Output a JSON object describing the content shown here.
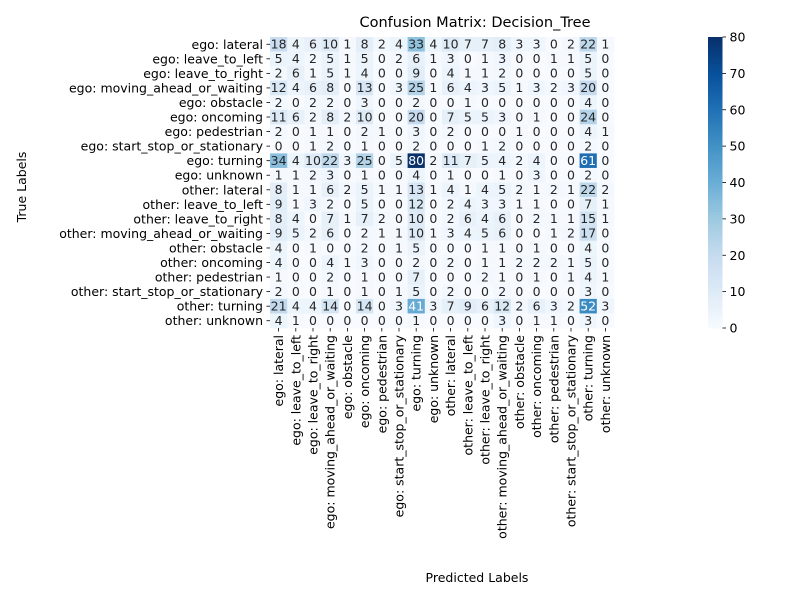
{
  "chart_data": {
    "type": "heatmap",
    "title": "Confusion Matrix: Decision_Tree",
    "xlabel": "Predicted Labels",
    "ylabel": "True Labels",
    "labels": [
      "ego: lateral",
      "ego: leave_to_left",
      "ego: leave_to_right",
      "ego: moving_ahead_or_waiting",
      "ego: obstacle",
      "ego: oncoming",
      "ego: pedestrian",
      "ego: start_stop_or_stationary",
      "ego: turning",
      "ego: unknown",
      "other: lateral",
      "other: leave_to_left",
      "other: leave_to_right",
      "other: moving_ahead_or_waiting",
      "other: obstacle",
      "other: oncoming",
      "other: pedestrian",
      "other: start_stop_or_stationary",
      "other: turning",
      "other: unknown"
    ],
    "matrix": [
      [
        18,
        4,
        6,
        10,
        1,
        8,
        2,
        4,
        33,
        4,
        10,
        7,
        7,
        8,
        3,
        3,
        0,
        2,
        22,
        1
      ],
      [
        5,
        4,
        2,
        5,
        1,
        5,
        0,
        2,
        6,
        1,
        3,
        0,
        1,
        3,
        0,
        0,
        1,
        1,
        5,
        0
      ],
      [
        2,
        6,
        1,
        5,
        1,
        4,
        0,
        0,
        9,
        0,
        4,
        1,
        1,
        2,
        0,
        0,
        0,
        0,
        5,
        0
      ],
      [
        12,
        4,
        6,
        8,
        0,
        13,
        0,
        3,
        25,
        1,
        6,
        4,
        3,
        5,
        1,
        3,
        2,
        3,
        20,
        0
      ],
      [
        2,
        0,
        2,
        2,
        0,
        3,
        0,
        0,
        2,
        0,
        0,
        1,
        0,
        0,
        0,
        0,
        0,
        0,
        4,
        0
      ],
      [
        11,
        6,
        2,
        8,
        2,
        10,
        0,
        0,
        20,
        0,
        7,
        5,
        5,
        3,
        0,
        1,
        0,
        0,
        24,
        0
      ],
      [
        2,
        0,
        1,
        1,
        0,
        2,
        1,
        0,
        3,
        0,
        2,
        0,
        0,
        0,
        1,
        0,
        0,
        0,
        4,
        1
      ],
      [
        0,
        0,
        1,
        2,
        0,
        1,
        0,
        0,
        2,
        0,
        0,
        0,
        1,
        2,
        0,
        0,
        0,
        0,
        2,
        0
      ],
      [
        34,
        4,
        10,
        22,
        3,
        25,
        0,
        5,
        80,
        2,
        11,
        7,
        5,
        4,
        2,
        4,
        0,
        0,
        61,
        0
      ],
      [
        1,
        1,
        2,
        3,
        0,
        1,
        0,
        0,
        4,
        0,
        1,
        0,
        0,
        1,
        0,
        3,
        0,
        0,
        2,
        0
      ],
      [
        8,
        1,
        1,
        6,
        2,
        5,
        1,
        1,
        13,
        1,
        4,
        1,
        4,
        5,
        2,
        1,
        2,
        1,
        22,
        2
      ],
      [
        9,
        1,
        3,
        2,
        0,
        5,
        0,
        0,
        12,
        0,
        2,
        4,
        3,
        3,
        1,
        1,
        0,
        0,
        7,
        1
      ],
      [
        8,
        4,
        0,
        7,
        1,
        7,
        2,
        0,
        10,
        0,
        2,
        6,
        4,
        6,
        0,
        2,
        1,
        1,
        15,
        1
      ],
      [
        9,
        5,
        2,
        6,
        0,
        2,
        1,
        1,
        10,
        1,
        3,
        4,
        5,
        6,
        0,
        0,
        1,
        2,
        17,
        0
      ],
      [
        4,
        0,
        1,
        0,
        0,
        2,
        0,
        1,
        5,
        0,
        0,
        0,
        1,
        1,
        0,
        1,
        0,
        0,
        4,
        0
      ],
      [
        4,
        0,
        0,
        4,
        1,
        3,
        0,
        0,
        2,
        0,
        2,
        0,
        1,
        1,
        2,
        2,
        2,
        1,
        5,
        0
      ],
      [
        1,
        0,
        0,
        2,
        0,
        1,
        0,
        0,
        7,
        0,
        0,
        0,
        2,
        1,
        0,
        1,
        0,
        1,
        4,
        1
      ],
      [
        2,
        0,
        0,
        1,
        0,
        1,
        0,
        1,
        5,
        0,
        2,
        0,
        0,
        2,
        0,
        0,
        0,
        0,
        3,
        0
      ],
      [
        21,
        4,
        4,
        14,
        0,
        14,
        0,
        3,
        41,
        3,
        7,
        9,
        6,
        12,
        2,
        6,
        3,
        2,
        52,
        3
      ],
      [
        4,
        1,
        0,
        0,
        0,
        0,
        0,
        0,
        1,
        0,
        0,
        0,
        0,
        3,
        0,
        1,
        1,
        0,
        3,
        0
      ]
    ],
    "zlim": [
      0,
      80
    ],
    "colorbar_ticks": [
      0,
      10,
      20,
      30,
      40,
      50,
      60,
      70,
      80
    ],
    "colormap": "Blues",
    "colors": {
      "low": "#f7fbff",
      "high": "#08306b"
    }
  }
}
